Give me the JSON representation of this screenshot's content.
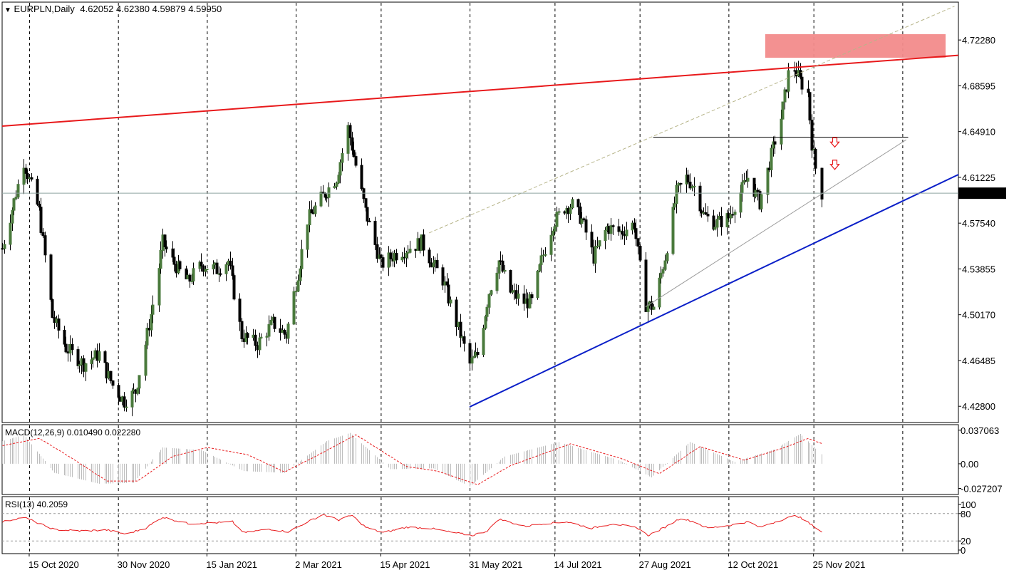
{
  "header": {
    "symbol_label": "EURPLN,Daily",
    "ohlc": "4.62052 4.62380 4.59879 4.59950",
    "menu_icon": "triangle-down-icon"
  },
  "colors": {
    "bull": "#4a7a3c",
    "bear": "#000000",
    "resistance_line": "#e8191b",
    "support_line": "#0a1fc8",
    "resistance_zone": "#f28b8b",
    "macd_signal": "#e8191b",
    "macd_hist": "#bdbdbd",
    "rsi_line": "#e8191b",
    "arrow": "#e8191b",
    "grid": "#000000"
  },
  "chart_data": [
    {
      "type": "candlestick",
      "name": "price",
      "y_ticks": [
        "4.72280",
        "4.68595",
        "4.64910",
        "4.61225",
        "4.57540",
        "4.53855",
        "4.50170",
        "4.46485",
        "4.42800"
      ],
      "y_range": [
        4.4155,
        4.7527
      ],
      "current_price_label": "4.59950",
      "current_price": 4.5995,
      "x_labels": [
        "15 Oct 2020",
        "30 Nov 2020",
        "15 Jan 2021",
        "2 Mar 2021",
        "15 Apr 2021",
        "31 May 2021",
        "14 Jul 2021",
        "27 Aug 2021",
        "12 Oct 2021",
        "25 Nov 2021"
      ],
      "horizontal_level": 4.6445,
      "resistance_zone": [
        4.7085,
        4.7275
      ],
      "trendlines": [
        {
          "role": "resistance",
          "from": [
            "2020-10-01",
            4.6535
          ],
          "to": [
            "2022-02-08",
            4.7105
          ]
        },
        {
          "role": "support",
          "from": [
            "2021-05-31",
            4.4275
          ],
          "to": [
            "2022-02-08",
            4.6145
          ]
        }
      ],
      "keypoints": [
        {
          "date": "2020-10-01",
          "value": 4.555
        },
        {
          "date": "2020-10-12",
          "value": 4.625
        },
        {
          "date": "2020-10-20",
          "value": 4.585
        },
        {
          "date": "2020-10-27",
          "value": 4.5
        },
        {
          "date": "2020-11-03",
          "value": 4.475
        },
        {
          "date": "2020-11-12",
          "value": 4.462
        },
        {
          "date": "2020-11-20",
          "value": 4.47
        },
        {
          "date": "2020-11-27",
          "value": 4.445
        },
        {
          "date": "2020-12-03",
          "value": 4.432
        },
        {
          "date": "2020-12-09",
          "value": 4.44
        },
        {
          "date": "2020-12-14",
          "value": 4.478
        },
        {
          "date": "2020-12-18",
          "value": 4.51
        },
        {
          "date": "2020-12-23",
          "value": 4.56
        },
        {
          "date": "2020-12-28",
          "value": 4.545
        },
        {
          "date": "2021-01-05",
          "value": 4.528
        },
        {
          "date": "2021-01-12",
          "value": 4.542
        },
        {
          "date": "2021-01-20",
          "value": 4.538
        },
        {
          "date": "2021-01-26",
          "value": 4.545
        },
        {
          "date": "2021-02-02",
          "value": 4.485
        },
        {
          "date": "2021-02-10",
          "value": 4.478
        },
        {
          "date": "2021-02-18",
          "value": 4.495
        },
        {
          "date": "2021-02-25",
          "value": 4.485
        },
        {
          "date": "2021-03-03",
          "value": 4.535
        },
        {
          "date": "2021-03-08",
          "value": 4.578
        },
        {
          "date": "2021-03-15",
          "value": 4.595
        },
        {
          "date": "2021-03-23",
          "value": 4.612
        },
        {
          "date": "2021-03-29",
          "value": 4.652
        },
        {
          "date": "2021-04-02",
          "value": 4.622
        },
        {
          "date": "2021-04-07",
          "value": 4.585
        },
        {
          "date": "2021-04-15",
          "value": 4.542
        },
        {
          "date": "2021-04-22",
          "value": 4.55
        },
        {
          "date": "2021-04-29",
          "value": 4.555
        },
        {
          "date": "2021-05-06",
          "value": 4.56
        },
        {
          "date": "2021-05-11",
          "value": 4.545
        },
        {
          "date": "2021-05-17",
          "value": 4.53
        },
        {
          "date": "2021-05-24",
          "value": 4.495
        },
        {
          "date": "2021-05-31",
          "value": 4.462
        },
        {
          "date": "2021-06-04",
          "value": 4.47
        },
        {
          "date": "2021-06-10",
          "value": 4.52
        },
        {
          "date": "2021-06-15",
          "value": 4.545
        },
        {
          "date": "2021-06-21",
          "value": 4.52
        },
        {
          "date": "2021-06-28",
          "value": 4.512
        },
        {
          "date": "2021-07-02",
          "value": 4.512
        },
        {
          "date": "2021-07-07",
          "value": 4.545
        },
        {
          "date": "2021-07-13",
          "value": 4.575
        },
        {
          "date": "2021-07-19",
          "value": 4.588
        },
        {
          "date": "2021-07-23",
          "value": 4.59
        },
        {
          "date": "2021-07-28",
          "value": 4.578
        },
        {
          "date": "2021-08-03",
          "value": 4.548
        },
        {
          "date": "2021-08-10",
          "value": 4.572
        },
        {
          "date": "2021-08-17",
          "value": 4.568
        },
        {
          "date": "2021-08-24",
          "value": 4.575
        },
        {
          "date": "2021-08-27",
          "value": 4.54
        },
        {
          "date": "2021-08-30",
          "value": 4.51
        },
        {
          "date": "2021-09-03",
          "value": 4.508
        },
        {
          "date": "2021-09-09",
          "value": 4.548
        },
        {
          "date": "2021-09-15",
          "value": 4.6
        },
        {
          "date": "2021-09-20",
          "value": 4.612
        },
        {
          "date": "2021-09-24",
          "value": 4.605
        },
        {
          "date": "2021-09-29",
          "value": 4.582
        },
        {
          "date": "2021-10-05",
          "value": 4.575
        },
        {
          "date": "2021-10-12",
          "value": 4.58
        },
        {
          "date": "2021-10-18",
          "value": 4.6
        },
        {
          "date": "2021-10-22",
          "value": 4.612
        },
        {
          "date": "2021-10-28",
          "value": 4.592
        },
        {
          "date": "2021-11-03",
          "value": 4.63
        },
        {
          "date": "2021-11-08",
          "value": 4.66
        },
        {
          "date": "2021-11-12",
          "value": 4.695
        },
        {
          "date": "2021-11-15",
          "value": 4.7
        },
        {
          "date": "2021-11-18",
          "value": 4.69
        },
        {
          "date": "2021-11-22",
          "value": 4.68
        },
        {
          "date": "2021-11-24",
          "value": 4.64
        },
        {
          "date": "2021-11-26",
          "value": 4.62
        },
        {
          "date": "2021-11-29",
          "value": 4.5995
        }
      ]
    },
    {
      "type": "line",
      "name": "MACD",
      "label": "MACD(12,26,9) 0.010490 0.022280",
      "y_ticks": [
        "0.037063",
        "0.00",
        "-0.027207"
      ],
      "y_range": [
        -0.0323,
        0.0416
      ],
      "signal_keypoints": [
        {
          "date": "2020-10-01",
          "value": 0.02
        },
        {
          "date": "2020-10-20",
          "value": 0.028
        },
        {
          "date": "2020-11-03",
          "value": 0.01
        },
        {
          "date": "2020-11-24",
          "value": -0.019
        },
        {
          "date": "2020-12-10",
          "value": -0.019
        },
        {
          "date": "2020-12-28",
          "value": 0.008
        },
        {
          "date": "2021-01-15",
          "value": 0.018
        },
        {
          "date": "2021-02-05",
          "value": 0.01
        },
        {
          "date": "2021-02-24",
          "value": -0.009
        },
        {
          "date": "2021-03-12",
          "value": 0.008
        },
        {
          "date": "2021-04-02",
          "value": 0.032
        },
        {
          "date": "2021-04-28",
          "value": -0.003
        },
        {
          "date": "2021-05-14",
          "value": -0.008
        },
        {
          "date": "2021-06-04",
          "value": -0.023
        },
        {
          "date": "2021-06-21",
          "value": -0.002
        },
        {
          "date": "2021-07-22",
          "value": 0.022
        },
        {
          "date": "2021-08-17",
          "value": 0.006
        },
        {
          "date": "2021-09-06",
          "value": -0.011
        },
        {
          "date": "2021-09-27",
          "value": 0.019
        },
        {
          "date": "2021-10-20",
          "value": 0.004
        },
        {
          "date": "2021-11-10",
          "value": 0.018
        },
        {
          "date": "2021-11-22",
          "value": 0.028
        },
        {
          "date": "2021-11-29",
          "value": 0.0223
        }
      ],
      "histogram_keypoints": [
        {
          "date": "2020-10-01",
          "value": 0.025
        },
        {
          "date": "2020-10-12",
          "value": 0.032
        },
        {
          "date": "2020-10-28",
          "value": -0.01
        },
        {
          "date": "2020-11-20",
          "value": -0.022
        },
        {
          "date": "2020-12-08",
          "value": -0.021
        },
        {
          "date": "2020-12-23",
          "value": 0.018
        },
        {
          "date": "2021-01-12",
          "value": 0.015
        },
        {
          "date": "2021-02-03",
          "value": -0.008
        },
        {
          "date": "2021-02-24",
          "value": -0.01
        },
        {
          "date": "2021-03-18",
          "value": 0.025
        },
        {
          "date": "2021-03-30",
          "value": 0.034
        },
        {
          "date": "2021-04-20",
          "value": -0.006
        },
        {
          "date": "2021-05-12",
          "value": -0.005
        },
        {
          "date": "2021-05-31",
          "value": -0.025
        },
        {
          "date": "2021-06-18",
          "value": 0.008
        },
        {
          "date": "2021-07-16",
          "value": 0.024
        },
        {
          "date": "2021-08-16",
          "value": 0.004
        },
        {
          "date": "2021-09-02",
          "value": -0.015
        },
        {
          "date": "2021-09-22",
          "value": 0.024
        },
        {
          "date": "2021-10-15",
          "value": 0.002
        },
        {
          "date": "2021-11-05",
          "value": 0.016
        },
        {
          "date": "2021-11-18",
          "value": 0.033
        },
        {
          "date": "2021-11-29",
          "value": 0.0105
        }
      ]
    },
    {
      "type": "line",
      "name": "RSI",
      "label": "RSI(13) 40.2059",
      "y_ticks": [
        "100",
        "80",
        "20",
        "0"
      ],
      "y_range": [
        0,
        100
      ],
      "levels": [
        80,
        20
      ],
      "keypoints": [
        {
          "date": "2020-10-01",
          "value": 62
        },
        {
          "date": "2020-10-12",
          "value": 72
        },
        {
          "date": "2020-10-20",
          "value": 58
        },
        {
          "date": "2020-10-28",
          "value": 45
        },
        {
          "date": "2020-11-10",
          "value": 42
        },
        {
          "date": "2020-11-24",
          "value": 44
        },
        {
          "date": "2020-12-04",
          "value": 35
        },
        {
          "date": "2020-12-14",
          "value": 48
        },
        {
          "date": "2020-12-23",
          "value": 72
        },
        {
          "date": "2021-01-05",
          "value": 58
        },
        {
          "date": "2021-01-20",
          "value": 60
        },
        {
          "date": "2021-01-28",
          "value": 62
        },
        {
          "date": "2021-02-03",
          "value": 38
        },
        {
          "date": "2021-02-16",
          "value": 46
        },
        {
          "date": "2021-02-26",
          "value": 40
        },
        {
          "date": "2021-03-08",
          "value": 62
        },
        {
          "date": "2021-03-16",
          "value": 78
        },
        {
          "date": "2021-03-24",
          "value": 66
        },
        {
          "date": "2021-03-31",
          "value": 76
        },
        {
          "date": "2021-04-07",
          "value": 50
        },
        {
          "date": "2021-04-16",
          "value": 38
        },
        {
          "date": "2021-04-28",
          "value": 50
        },
        {
          "date": "2021-05-10",
          "value": 48
        },
        {
          "date": "2021-05-20",
          "value": 40
        },
        {
          "date": "2021-06-01",
          "value": 32
        },
        {
          "date": "2021-06-09",
          "value": 42
        },
        {
          "date": "2021-06-15",
          "value": 68
        },
        {
          "date": "2021-06-28",
          "value": 52
        },
        {
          "date": "2021-07-08",
          "value": 58
        },
        {
          "date": "2021-07-20",
          "value": 62
        },
        {
          "date": "2021-08-02",
          "value": 48
        },
        {
          "date": "2021-08-13",
          "value": 58
        },
        {
          "date": "2021-08-26",
          "value": 48
        },
        {
          "date": "2021-08-31",
          "value": 32
        },
        {
          "date": "2021-09-08",
          "value": 48
        },
        {
          "date": "2021-09-17",
          "value": 70
        },
        {
          "date": "2021-09-24",
          "value": 62
        },
        {
          "date": "2021-10-01",
          "value": 48
        },
        {
          "date": "2021-10-12",
          "value": 54
        },
        {
          "date": "2021-10-22",
          "value": 62
        },
        {
          "date": "2021-10-28",
          "value": 50
        },
        {
          "date": "2021-11-08",
          "value": 66
        },
        {
          "date": "2021-11-16",
          "value": 76
        },
        {
          "date": "2021-11-22",
          "value": 60
        },
        {
          "date": "2021-11-29",
          "value": 40.2
        }
      ]
    }
  ]
}
